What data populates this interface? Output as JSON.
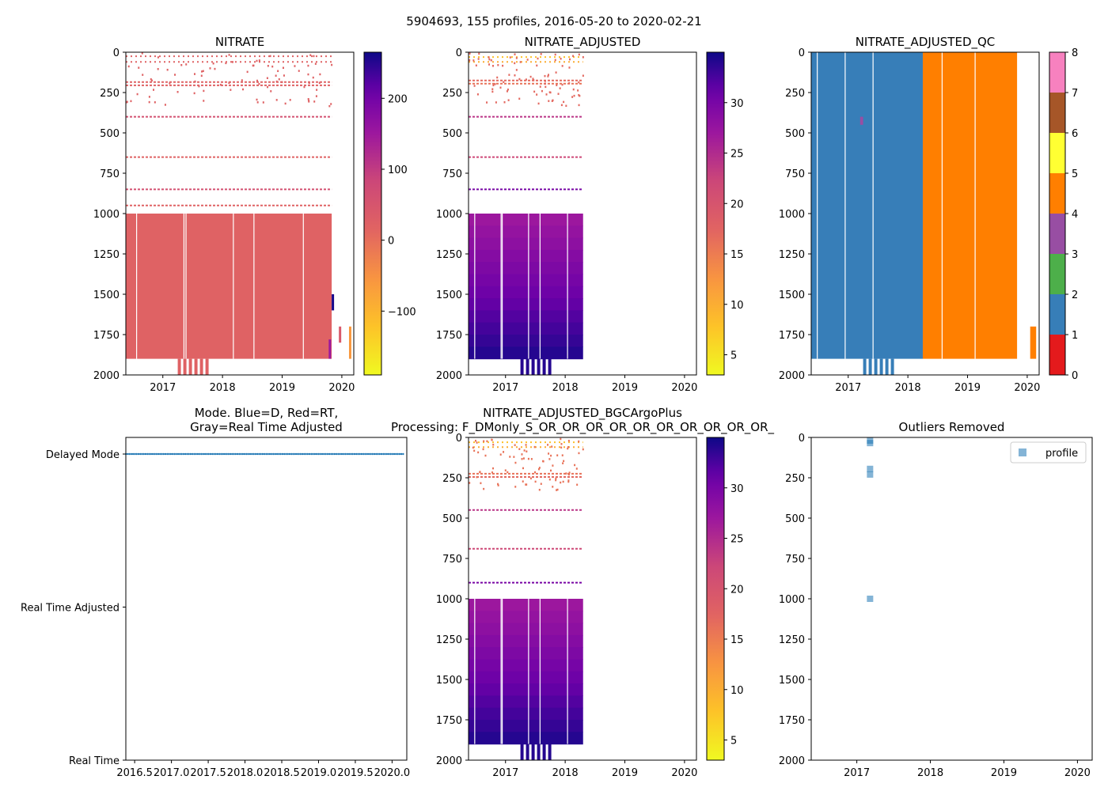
{
  "suptitle": "5904693, 155 profiles, 2016-05-20 to 2020-02-21",
  "chart_data": [
    {
      "id": "nitrate",
      "type": "heatmap",
      "title": "NITRATE",
      "xlim": [
        2016.38,
        2020.2
      ],
      "ylim": [
        2000,
        0
      ],
      "x_ticks": [
        2017,
        2018,
        2019,
        2020
      ],
      "x_tick_labels": [
        "2017",
        "2018",
        "2019",
        "2020"
      ],
      "y_ticks": [
        0,
        250,
        500,
        750,
        1000,
        1250,
        1500,
        1750,
        2000
      ],
      "y_tick_labels": [
        "0",
        "250",
        "500",
        "750",
        "1000",
        "1250",
        "1500",
        "1750",
        "2000"
      ],
      "colorbar": {
        "colormap": "plasma_r",
        "range": [
          -190,
          265
        ],
        "ticks": [
          -100,
          0,
          100,
          200
        ],
        "tick_labels": [
          "−100",
          "0",
          "100",
          "200"
        ]
      },
      "fill_color": "#d4436b",
      "data_extent": {
        "x": [
          2016.38,
          2019.83
        ],
        "y": [
          0,
          1900
        ]
      },
      "deep_block": {
        "y": [
          1000,
          1900
        ],
        "value": 20
      },
      "sparse_levels": [
        {
          "depth": 25,
          "value": 20
        },
        {
          "depth": 60,
          "value": 20
        },
        {
          "depth": 185,
          "value": 20
        },
        {
          "depth": 205,
          "value": 20
        },
        {
          "depth": 400,
          "value": 60
        },
        {
          "depth": 650,
          "value": 20
        },
        {
          "depth": 850,
          "value": 60
        },
        {
          "depth": 950,
          "value": 20
        }
      ],
      "anomalies": [
        {
          "x": 2019.83,
          "y": [
            1500,
            1600
          ],
          "value": 260
        },
        {
          "x": 2019.78,
          "y": [
            1780,
            1900
          ],
          "value": 150
        },
        {
          "x": 2019.95,
          "y": [
            1700,
            1800
          ],
          "value": 40
        },
        {
          "x": 2020.12,
          "y": [
            1700,
            1900
          ],
          "value": -60
        }
      ]
    },
    {
      "id": "nitrate_adjusted",
      "type": "heatmap",
      "title": "NITRATE_ADJUSTED",
      "xlim": [
        2016.38,
        2020.2
      ],
      "ylim": [
        2000,
        0
      ],
      "x_ticks": [
        2017,
        2018,
        2019,
        2020
      ],
      "x_tick_labels": [
        "2017",
        "2018",
        "2019",
        "2020"
      ],
      "y_ticks": [
        0,
        250,
        500,
        750,
        1000,
        1250,
        1500,
        1750,
        2000
      ],
      "y_tick_labels": [
        "0",
        "250",
        "500",
        "750",
        "1000",
        "1250",
        "1500",
        "1750",
        "2000"
      ],
      "colorbar": {
        "colormap": "plasma_r",
        "range": [
          3,
          35
        ],
        "ticks": [
          5,
          10,
          15,
          20,
          25,
          30
        ],
        "tick_labels": [
          "5",
          "10",
          "15",
          "20",
          "25",
          "30"
        ]
      },
      "data_extent": {
        "x": [
          2016.38,
          2018.3
        ],
        "y": [
          0,
          1900
        ]
      },
      "deep_block": {
        "y": [
          1000,
          1900
        ],
        "value_top": 27,
        "value_bottom": 34
      },
      "sparse_levels": [
        {
          "depth": 30,
          "value": 8
        },
        {
          "depth": 60,
          "value": 10
        },
        {
          "depth": 175,
          "value": 17
        },
        {
          "depth": 195,
          "value": 16
        },
        {
          "depth": 400,
          "value": 24
        },
        {
          "depth": 650,
          "value": 22
        },
        {
          "depth": 850,
          "value": 30
        }
      ]
    },
    {
      "id": "nitrate_adjusted_qc",
      "type": "heatmap",
      "title": "NITRATE_ADJUSTED_QC",
      "xlim": [
        2016.38,
        2020.2
      ],
      "ylim": [
        2000,
        0
      ],
      "x_ticks": [
        2017,
        2018,
        2019,
        2020
      ],
      "x_tick_labels": [
        "2017",
        "2018",
        "2019",
        "2020"
      ],
      "y_ticks": [
        0,
        250,
        500,
        750,
        1000,
        1250,
        1500,
        1750,
        2000
      ],
      "y_tick_labels": [
        "0",
        "250",
        "500",
        "750",
        "1000",
        "1250",
        "1500",
        "1750",
        "2000"
      ],
      "colorbar": {
        "colormap": "qc_categorical",
        "range": [
          0,
          8
        ],
        "ticks": [
          0,
          1,
          2,
          3,
          4,
          5,
          6,
          7,
          8
        ],
        "tick_labels": [
          "0",
          "1",
          "2",
          "3",
          "4",
          "5",
          "6",
          "7",
          "8"
        ],
        "categories": [
          {
            "from": 0,
            "to": 1,
            "color": "#e41a1c"
          },
          {
            "from": 1,
            "to": 2,
            "color": "#377eb8"
          },
          {
            "from": 2,
            "to": 3,
            "color": "#4daf4a"
          },
          {
            "from": 3,
            "to": 4,
            "color": "#984ea3"
          },
          {
            "from": 4,
            "to": 5,
            "color": "#ff7f00"
          },
          {
            "from": 5,
            "to": 6,
            "color": "#ffff33"
          },
          {
            "from": 6,
            "to": 7,
            "color": "#a65628"
          },
          {
            "from": 7,
            "to": 8,
            "color": "#f781bf"
          },
          {
            "from": 8,
            "to": 8.8,
            "color": "#999999"
          }
        ]
      },
      "segments": [
        {
          "qc": 1,
          "x": [
            2016.38,
            2018.25
          ],
          "y": [
            0,
            1900
          ]
        },
        {
          "qc": 4,
          "x": [
            2018.25,
            2019.83
          ],
          "y": [
            0,
            1900
          ]
        },
        {
          "qc": 4,
          "x": [
            2020.05,
            2020.15
          ],
          "y": [
            1700,
            1900
          ]
        },
        {
          "qc": 3,
          "x": [
            2017.2,
            2017.25
          ],
          "y": [
            400,
            450
          ]
        }
      ]
    },
    {
      "id": "mode",
      "type": "scatter",
      "title": "Mode. Blue=D, Red=RT,\nGray=Real Time Adjusted",
      "title_lines": [
        "Mode. Blue=D, Red=RT,",
        "Gray=Real Time Adjusted"
      ],
      "xlim": [
        2016.38,
        2020.2
      ],
      "ylim": [
        "Real Time",
        "Delayed Mode"
      ],
      "x_ticks": [
        2016.5,
        2017.0,
        2017.5,
        2018.0,
        2018.5,
        2019.0,
        2019.5,
        2020.0
      ],
      "x_tick_labels": [
        "2016.5",
        "2017.0",
        "2017.5",
        "2018.0",
        "2018.5",
        "2019.0",
        "2019.5",
        "2020.0"
      ],
      "y_categories": [
        "Real Time",
        "Real Time Adjusted",
        "Delayed Mode"
      ],
      "series": [
        {
          "name": "D",
          "color": "#1f77b4",
          "y": "Delayed Mode",
          "x_range": [
            2016.38,
            2020.15
          ],
          "count": 155
        }
      ]
    },
    {
      "id": "nitrate_adjusted_bgc",
      "type": "heatmap",
      "title": "NITRATE_ADJUSTED_BGCArgoPlus\nProcessing: F_DMonly_S_OR_OR_OR_OR_OR_OR_OR_OR_OR_OR_",
      "title_lines": [
        "NITRATE_ADJUSTED_BGCArgoPlus",
        "Processing: F_DMonly_S_OR_OR_OR_OR_OR_OR_OR_OR_OR_OR_"
      ],
      "xlim": [
        2016.38,
        2020.2
      ],
      "ylim": [
        2000,
        0
      ],
      "x_ticks": [
        2017,
        2018,
        2019,
        2020
      ],
      "x_tick_labels": [
        "2017",
        "2018",
        "2019",
        "2020"
      ],
      "y_ticks": [
        0,
        250,
        500,
        750,
        1000,
        1250,
        1500,
        1750,
        2000
      ],
      "y_tick_labels": [
        "0",
        "250",
        "500",
        "750",
        "1000",
        "1250",
        "1500",
        "1750",
        "2000"
      ],
      "colorbar": {
        "colormap": "plasma_r",
        "range": [
          3,
          35
        ],
        "ticks": [
          5,
          10,
          15,
          20,
          25,
          30
        ],
        "tick_labels": [
          "5",
          "10",
          "15",
          "20",
          "25",
          "30"
        ]
      },
      "data_extent": {
        "x": [
          2016.38,
          2018.3
        ],
        "y": [
          0,
          1900
        ]
      },
      "deep_block": {
        "y": [
          1000,
          1900
        ],
        "value_top": 27,
        "value_bottom": 34
      },
      "sparse_levels": [
        {
          "depth": 30,
          "value": 8
        },
        {
          "depth": 60,
          "value": 10
        },
        {
          "depth": 225,
          "value": 16
        },
        {
          "depth": 245,
          "value": 17
        },
        {
          "depth": 450,
          "value": 24
        },
        {
          "depth": 690,
          "value": 22
        },
        {
          "depth": 900,
          "value": 30
        }
      ]
    },
    {
      "id": "outliers",
      "type": "scatter",
      "title": "Outliers Removed",
      "xlim": [
        2016.38,
        2020.2
      ],
      "ylim": [
        2000,
        0
      ],
      "x_ticks": [
        2017,
        2018,
        2019,
        2020
      ],
      "x_tick_labels": [
        "2017",
        "2018",
        "2019",
        "2020"
      ],
      "y_ticks": [
        0,
        250,
        500,
        750,
        1000,
        1250,
        1500,
        1750,
        2000
      ],
      "y_tick_labels": [
        "0",
        "250",
        "500",
        "750",
        "1000",
        "1250",
        "1500",
        "1750",
        "2000"
      ],
      "legend": {
        "position": "upper-right",
        "entries": [
          "profile"
        ]
      },
      "series": [
        {
          "name": "profile",
          "color": "#1f77b4",
          "points": [
            {
              "x": 2017.18,
              "y": 20
            },
            {
              "x": 2017.18,
              "y": 35
            },
            {
              "x": 2017.18,
              "y": 195
            },
            {
              "x": 2017.18,
              "y": 230
            },
            {
              "x": 2017.18,
              "y": 1000
            }
          ]
        }
      ]
    }
  ]
}
